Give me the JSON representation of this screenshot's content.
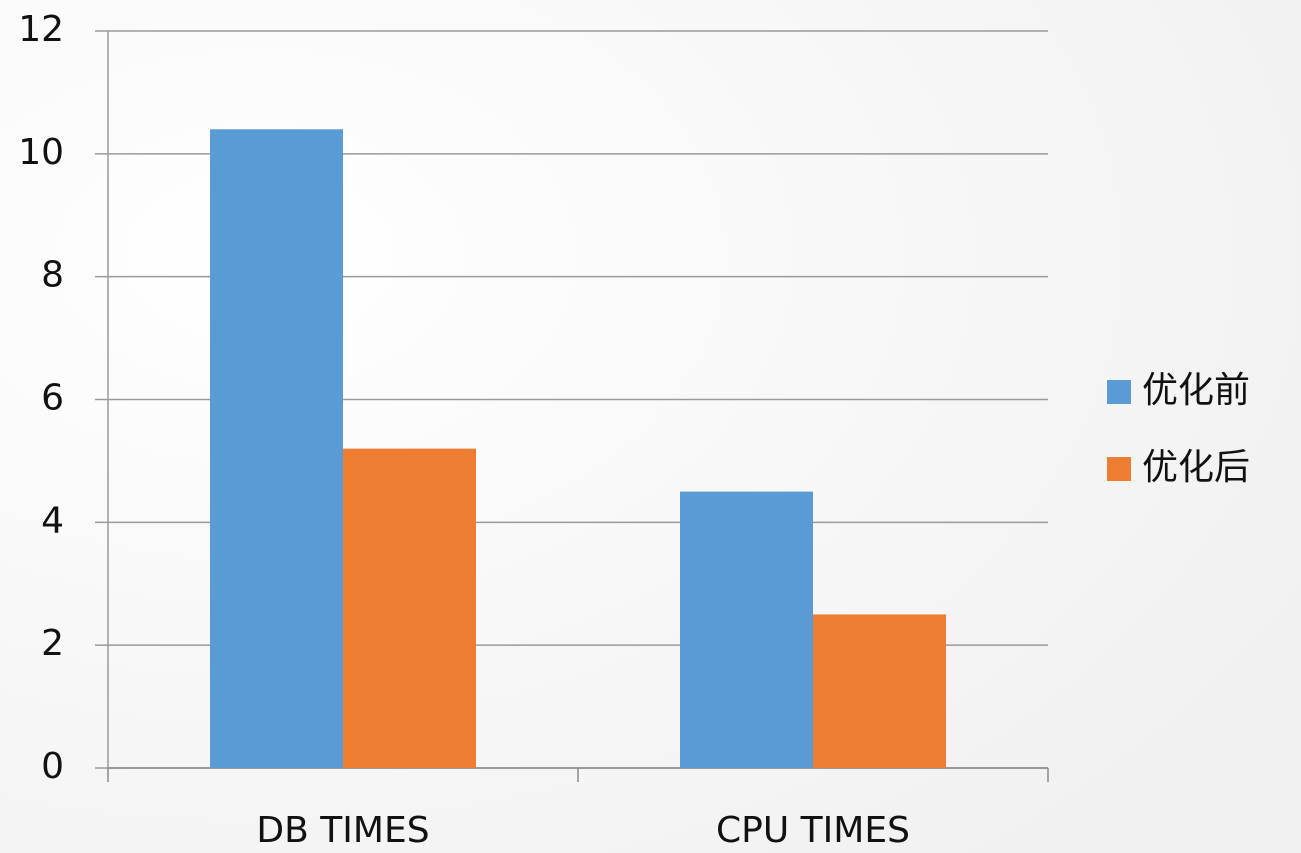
{
  "chart_data": {
    "type": "bar",
    "categories": [
      "DB TIMES",
      "CPU TIMES"
    ],
    "series": [
      {
        "name": "优化前",
        "color": "#5b9bd5",
        "values": [
          10.4,
          4.5
        ]
      },
      {
        "name": "优化后",
        "color": "#ed7d31",
        "values": [
          5.2,
          2.5
        ]
      }
    ],
    "ylim": [
      0,
      12
    ],
    "yticks": [
      0,
      2,
      4,
      6,
      8,
      10,
      12
    ],
    "grid": true,
    "legend": "right"
  }
}
